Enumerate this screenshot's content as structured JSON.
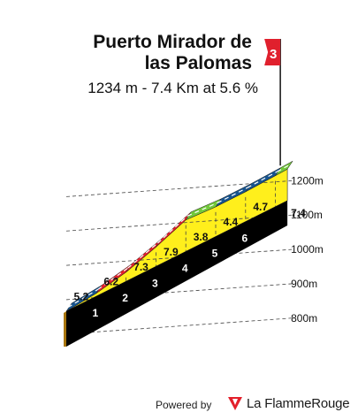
{
  "chart_data": {
    "type": "area",
    "title_lines": [
      "Puerto Mirador de",
      "las Palomas"
    ],
    "subtitle": "1234 m - 7.4 Km at 5.6 %",
    "km": [
      0,
      1,
      2,
      3,
      4,
      5,
      6,
      7,
      7.4
    ],
    "elevation_m": [
      820,
      872,
      934,
      1007,
      1086,
      1124,
      1168,
      1215,
      1234
    ],
    "segment_gradients": [
      "5.2",
      "6.2",
      "7.3",
      "7.9",
      "3.8",
      "4.4",
      "4.7"
    ],
    "segment_colors": [
      "blue",
      "red",
      "red",
      "red",
      "green",
      "blue",
      "blue",
      "green"
    ],
    "km_labels": [
      "1",
      "2",
      "3",
      "4",
      "5",
      "6"
    ],
    "final_km_label": "7.4",
    "y_ticks": [
      {
        "label": "800m",
        "value": 800
      },
      {
        "label": "900m",
        "value": 900
      },
      {
        "label": "1000m",
        "value": 1000
      },
      {
        "label": "1100m",
        "value": 1100
      },
      {
        "label": "1200m",
        "value": 1200
      }
    ],
    "flag_label": "3",
    "colors": {
      "area": "#ffef1c",
      "blue": "#17548e",
      "red": "#e3202b",
      "green": "#72c93a",
      "base": "#000000",
      "side": "#a8750c",
      "flag": "#e0202d"
    }
  },
  "footer": {
    "powered_label": "Powered by",
    "brand_label": "La FlammeRouge"
  }
}
